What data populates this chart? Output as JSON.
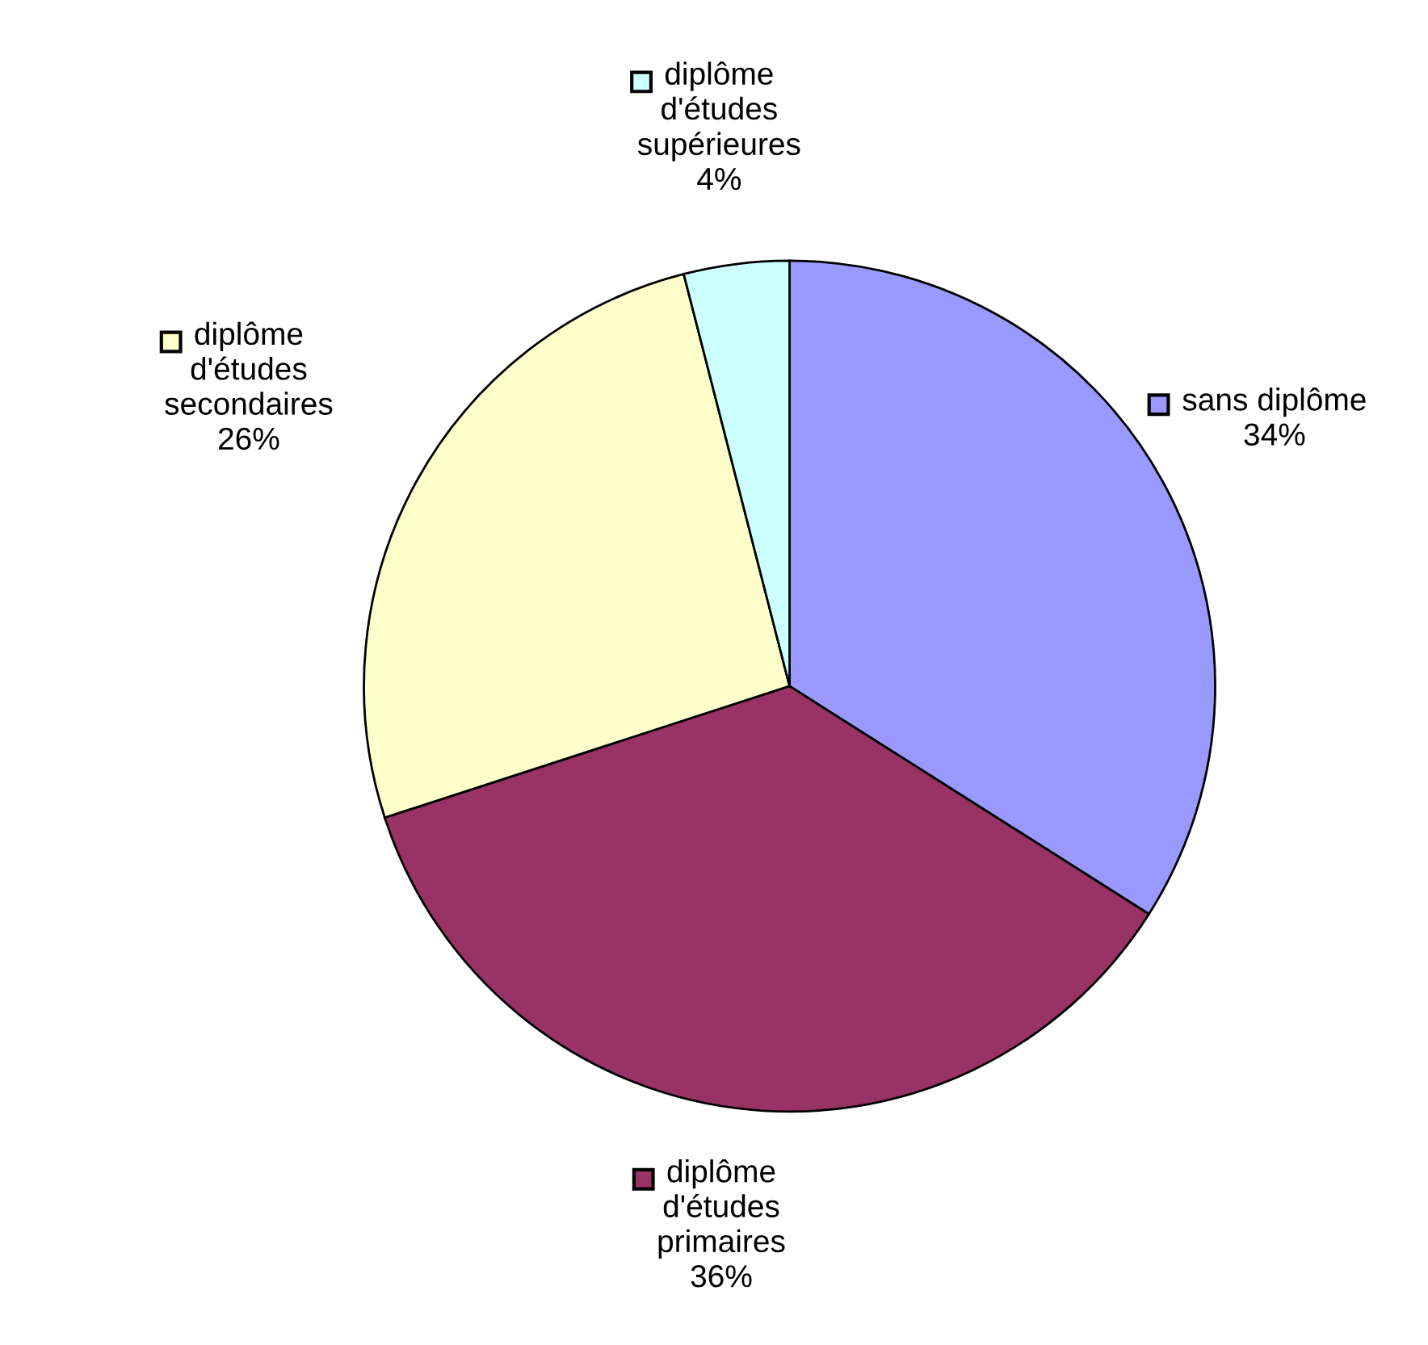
{
  "chart_data": {
    "type": "pie",
    "categories": [
      "sans diplôme",
      "diplôme d'études primaires",
      "diplôme d'études secondaires",
      "diplôme d'études supérieures"
    ],
    "values": [
      34,
      36,
      26,
      4
    ],
    "colors": [
      "#9999ff",
      "#993366",
      "#ffffcc",
      "#ccffff"
    ],
    "value_labels": [
      "34%",
      "36%",
      "26%",
      "4%"
    ],
    "legend": "right"
  }
}
